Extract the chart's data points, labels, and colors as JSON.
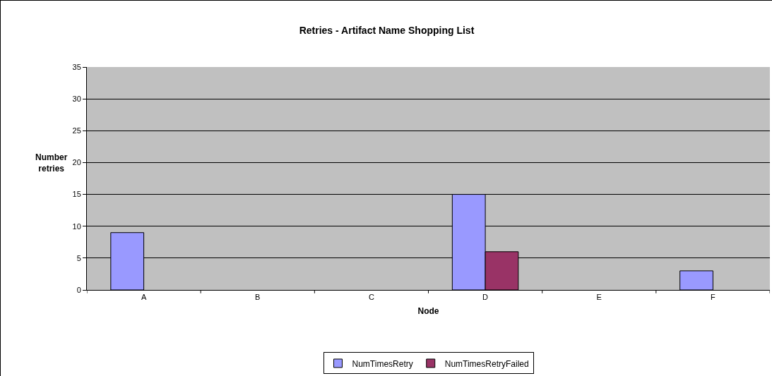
{
  "chart_data": {
    "type": "bar",
    "title": "Retries - Artifact Name Shopping List",
    "xlabel": "Node",
    "ylabel": "Number retries",
    "categories": [
      "A",
      "B",
      "C",
      "D",
      "E",
      "F"
    ],
    "series": [
      {
        "name": "NumTimesRetry",
        "color": "#9999ff",
        "values": [
          9,
          null,
          null,
          15,
          null,
          3
        ]
      },
      {
        "name": "NumTimesRetryFailed",
        "color": "#993366",
        "values": [
          null,
          null,
          null,
          6,
          null,
          null
        ]
      }
    ],
    "ylim": [
      0,
      35
    ],
    "yticks": [
      0,
      5,
      10,
      15,
      20,
      25,
      30,
      35
    ],
    "grid": "y",
    "legend": "bottom"
  }
}
